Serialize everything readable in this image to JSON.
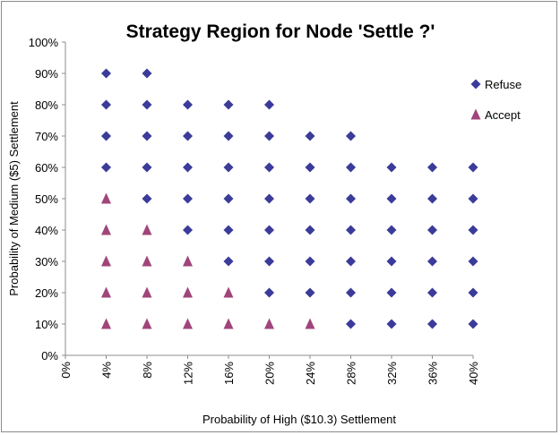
{
  "chart_data": {
    "type": "scatter",
    "title": "Strategy Region for Node 'Settle ?'",
    "xlabel": "Probability of High ($10.3) Settlement",
    "ylabel": "Probability of Medium ($5) Settlement",
    "xlim": [
      0,
      40
    ],
    "ylim": [
      0,
      100
    ],
    "x_ticks": [
      "0%",
      "4%",
      "8%",
      "12%",
      "16%",
      "20%",
      "24%",
      "28%",
      "32%",
      "36%",
      "40%"
    ],
    "y_ticks": [
      "0%",
      "10%",
      "20%",
      "30%",
      "40%",
      "50%",
      "60%",
      "70%",
      "80%",
      "90%",
      "100%"
    ],
    "grid": false,
    "legend": "right",
    "series": [
      {
        "name": "Refuse",
        "marker": "diamond",
        "color": "#3b3b9a",
        "points": [
          [
            4,
            90
          ],
          [
            8,
            90
          ],
          [
            4,
            80
          ],
          [
            8,
            80
          ],
          [
            12,
            80
          ],
          [
            16,
            80
          ],
          [
            20,
            80
          ],
          [
            4,
            70
          ],
          [
            8,
            70
          ],
          [
            12,
            70
          ],
          [
            16,
            70
          ],
          [
            20,
            70
          ],
          [
            24,
            70
          ],
          [
            28,
            70
          ],
          [
            4,
            60
          ],
          [
            8,
            60
          ],
          [
            12,
            60
          ],
          [
            16,
            60
          ],
          [
            20,
            60
          ],
          [
            24,
            60
          ],
          [
            28,
            60
          ],
          [
            32,
            60
          ],
          [
            36,
            60
          ],
          [
            40,
            60
          ],
          [
            8,
            50
          ],
          [
            12,
            50
          ],
          [
            16,
            50
          ],
          [
            20,
            50
          ],
          [
            24,
            50
          ],
          [
            28,
            50
          ],
          [
            32,
            50
          ],
          [
            36,
            50
          ],
          [
            40,
            50
          ],
          [
            12,
            40
          ],
          [
            16,
            40
          ],
          [
            20,
            40
          ],
          [
            24,
            40
          ],
          [
            28,
            40
          ],
          [
            32,
            40
          ],
          [
            36,
            40
          ],
          [
            40,
            40
          ],
          [
            16,
            30
          ],
          [
            20,
            30
          ],
          [
            24,
            30
          ],
          [
            28,
            30
          ],
          [
            32,
            30
          ],
          [
            36,
            30
          ],
          [
            40,
            30
          ],
          [
            20,
            20
          ],
          [
            24,
            20
          ],
          [
            28,
            20
          ],
          [
            32,
            20
          ],
          [
            36,
            20
          ],
          [
            40,
            20
          ],
          [
            28,
            10
          ],
          [
            32,
            10
          ],
          [
            36,
            10
          ],
          [
            40,
            10
          ]
        ]
      },
      {
        "name": "Accept",
        "marker": "triangle",
        "color": "#a0457a",
        "points": [
          [
            4,
            50
          ],
          [
            4,
            40
          ],
          [
            8,
            40
          ],
          [
            4,
            30
          ],
          [
            8,
            30
          ],
          [
            12,
            30
          ],
          [
            4,
            20
          ],
          [
            8,
            20
          ],
          [
            12,
            20
          ],
          [
            16,
            20
          ],
          [
            4,
            10
          ],
          [
            8,
            10
          ],
          [
            12,
            10
          ],
          [
            16,
            10
          ],
          [
            20,
            10
          ],
          [
            24,
            10
          ]
        ]
      }
    ]
  }
}
